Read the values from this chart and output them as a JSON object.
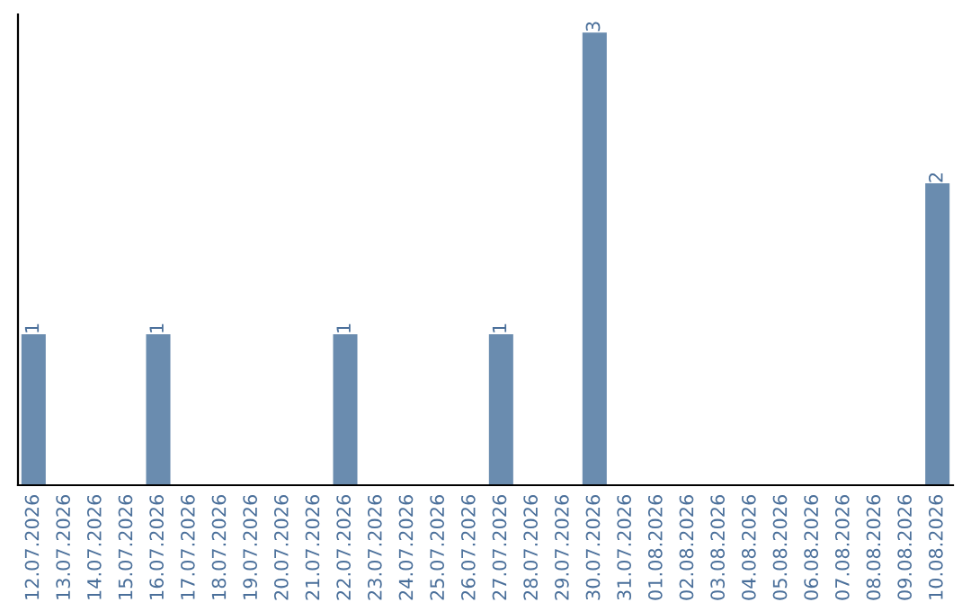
{
  "chart_data": {
    "type": "bar",
    "categories": [
      "12.07.2026",
      "13.07.2026",
      "14.07.2026",
      "15.07.2026",
      "16.07.2026",
      "17.07.2026",
      "18.07.2026",
      "19.07.2026",
      "20.07.2026",
      "21.07.2026",
      "22.07.2026",
      "23.07.2026",
      "24.07.2026",
      "25.07.2026",
      "26.07.2026",
      "27.07.2026",
      "28.07.2026",
      "29.07.2026",
      "30.07.2026",
      "31.07.2026",
      "01.08.2026",
      "02.08.2026",
      "03.08.2026",
      "04.08.2026",
      "05.08.2026",
      "06.08.2026",
      "07.08.2026",
      "08.08.2026",
      "09.08.2026",
      "10.08.2026"
    ],
    "values": [
      1,
      0,
      0,
      0,
      1,
      0,
      0,
      0,
      0,
      0,
      1,
      0,
      0,
      0,
      0,
      1,
      0,
      0,
      3,
      0,
      0,
      0,
      0,
      0,
      0,
      0,
      0,
      0,
      0,
      2
    ],
    "value_labels": [
      "1",
      null,
      null,
      null,
      "1",
      null,
      null,
      null,
      null,
      null,
      "1",
      null,
      null,
      null,
      null,
      "1",
      null,
      null,
      "3",
      null,
      null,
      null,
      null,
      null,
      null,
      null,
      null,
      null,
      null,
      "2"
    ],
    "color": "#6a8caf",
    "tick_labels": "x",
    "grid": false,
    "legend": false
  }
}
